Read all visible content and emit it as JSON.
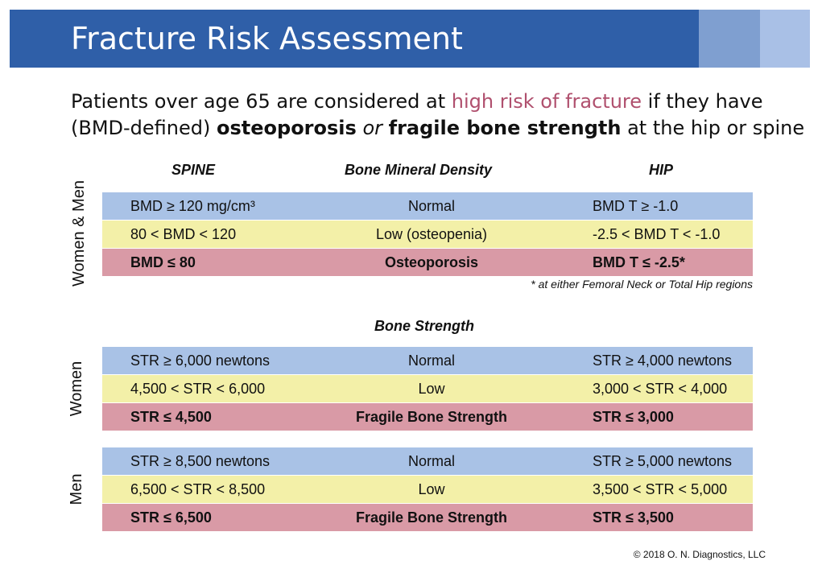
{
  "title": "Fracture Risk Assessment",
  "intro": {
    "l1_a": "Patients over age 65 are considered at ",
    "l1_hl": "high risk of fracture",
    "l1_b": " if they have",
    "l2_a": "(BMD-defined) ",
    "l2_b1": "osteoporosis",
    "l2_or": " or ",
    "l2_b2": "fragile bone strength",
    "l2_c": " at the hip or spine"
  },
  "headers": {
    "spine": "SPINE",
    "bmd": "Bone Mineral Density",
    "hip": "HIP",
    "strength": "Bone Strength"
  },
  "labels": {
    "women_men": "Women & Men",
    "women": "Women",
    "men": "Men"
  },
  "bmd_rows": [
    {
      "spine": "BMD ≥ 120 mg/cm³",
      "mid": "Normal",
      "hip": "BMD T ≥ -1.0"
    },
    {
      "spine": "80 < BMD < 120",
      "mid": "Low (osteopenia)",
      "hip": "-2.5 < BMD T < -1.0"
    },
    {
      "spine": "BMD ≤ 80",
      "mid": "Osteoporosis",
      "hip": "BMD T ≤ -2.5*"
    }
  ],
  "footnote": "* at either Femoral Neck or Total Hip regions",
  "women_rows": [
    {
      "spine": "STR ≥ 6,000 newtons",
      "mid": "Normal",
      "hip": "STR ≥ 4,000 newtons"
    },
    {
      "spine": "4,500 < STR < 6,000",
      "mid": "Low",
      "hip": "3,000 < STR < 4,000"
    },
    {
      "spine": "STR ≤ 4,500",
      "mid": "Fragile Bone Strength",
      "hip": "STR ≤ 3,000"
    }
  ],
  "men_rows": [
    {
      "spine": "STR ≥ 8,500 newtons",
      "mid": "Normal",
      "hip": "STR ≥ 5,000 newtons"
    },
    {
      "spine": "6,500 < STR < 8,500",
      "mid": "Low",
      "hip": "3,500 < STR < 5,000"
    },
    {
      "spine": "STR ≤ 6,500",
      "mid": "Fragile Bone Strength",
      "hip": "STR ≤ 3,500"
    }
  ],
  "copyright": "© 2018  O. N. Diagnostics, LLC",
  "colors": {
    "title_bar": "#2f5fa8",
    "normal_row": "#a9c2e6",
    "low_row": "#f3f0a8",
    "high_risk_row": "#d99aa6",
    "highlight_text": "#b0506e"
  }
}
